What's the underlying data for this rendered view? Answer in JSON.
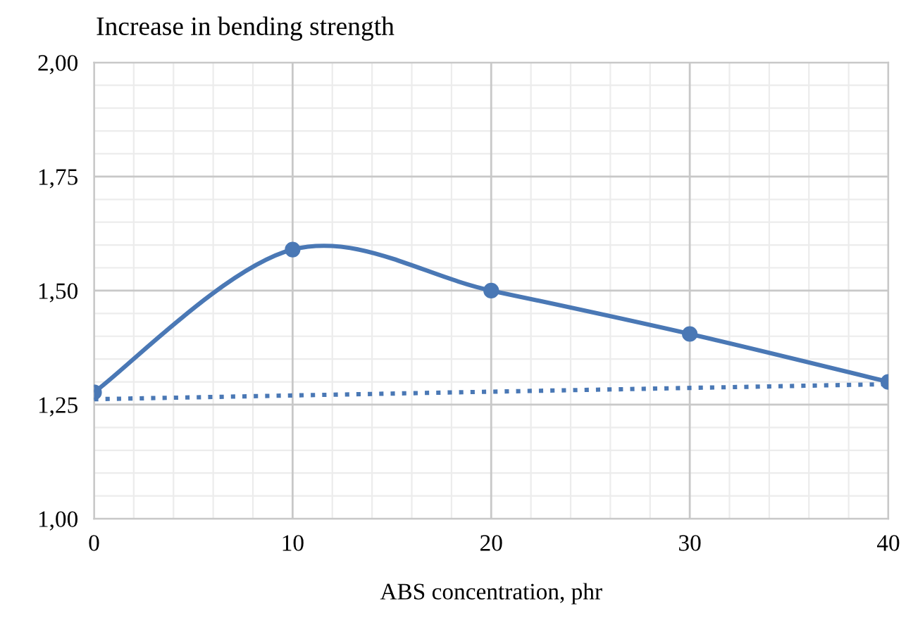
{
  "chart_data": {
    "type": "line",
    "title": "Increase in bending strength",
    "xlabel": "ABS concentration, phr",
    "series": [
      {
        "color": "#4a78b5",
        "x": [
          0,
          10,
          20,
          30,
          40
        ],
        "values": [
          1.277,
          1.59,
          1.5,
          1.405,
          1.3
        ],
        "marker": "circle",
        "line_style": "solid"
      },
      {
        "color": "#4a78b5",
        "x": [
          0,
          40
        ],
        "values": [
          1.262,
          1.295
        ],
        "marker": "none",
        "line_style": "dotted"
      }
    ],
    "xlim": [
      0,
      40
    ],
    "xticks": [
      0,
      10,
      20,
      30,
      40
    ],
    "ylim": [
      1.0,
      2.0
    ],
    "yticks": [
      {
        "value": 1.0,
        "label": "1,00"
      },
      {
        "value": 1.25,
        "label": "1,25"
      },
      {
        "value": 1.5,
        "label": "1,50"
      },
      {
        "value": 1.75,
        "label": "1,75"
      },
      {
        "value": 2.0,
        "label": "2,00"
      }
    ],
    "grid": true,
    "legend": false
  }
}
